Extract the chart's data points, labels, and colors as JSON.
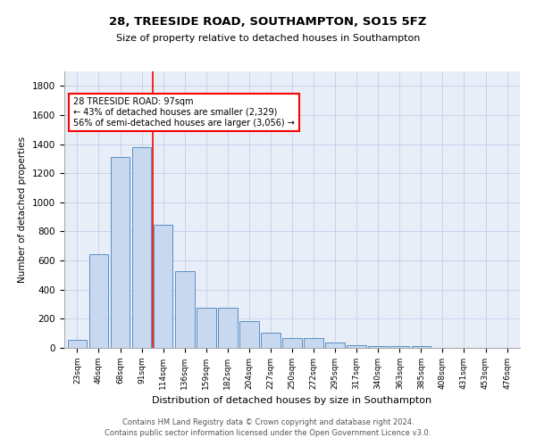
{
  "title": "28, TREESIDE ROAD, SOUTHAMPTON, SO15 5FZ",
  "subtitle": "Size of property relative to detached houses in Southampton",
  "xlabel": "Distribution of detached houses by size in Southampton",
  "ylabel": "Number of detached properties",
  "categories": [
    "23sqm",
    "46sqm",
    "68sqm",
    "91sqm",
    "114sqm",
    "136sqm",
    "159sqm",
    "182sqm",
    "204sqm",
    "227sqm",
    "250sqm",
    "272sqm",
    "295sqm",
    "317sqm",
    "340sqm",
    "363sqm",
    "385sqm",
    "408sqm",
    "431sqm",
    "453sqm",
    "476sqm"
  ],
  "values": [
    55,
    645,
    1310,
    1380,
    845,
    530,
    275,
    275,
    185,
    105,
    65,
    65,
    35,
    20,
    15,
    10,
    10,
    0,
    0,
    0,
    0
  ],
  "bar_color": "#c8d8ee",
  "bar_edge_color": "#5b8fc4",
  "ylim": [
    0,
    1900
  ],
  "yticks": [
    0,
    200,
    400,
    600,
    800,
    1000,
    1200,
    1400,
    1600,
    1800
  ],
  "property_line_x": 3.5,
  "property_line_color": "red",
  "annotation_text": "28 TREESIDE ROAD: 97sqm\n← 43% of detached houses are smaller (2,329)\n56% of semi-detached houses are larger (3,056) →",
  "annotation_box_color": "white",
  "annotation_box_edge_color": "red",
  "grid_color": "#c0cfe8",
  "background_color": "#e8eef8",
  "footer_line1": "Contains HM Land Registry data © Crown copyright and database right 2024.",
  "footer_line2": "Contains public sector information licensed under the Open Government Licence v3.0."
}
